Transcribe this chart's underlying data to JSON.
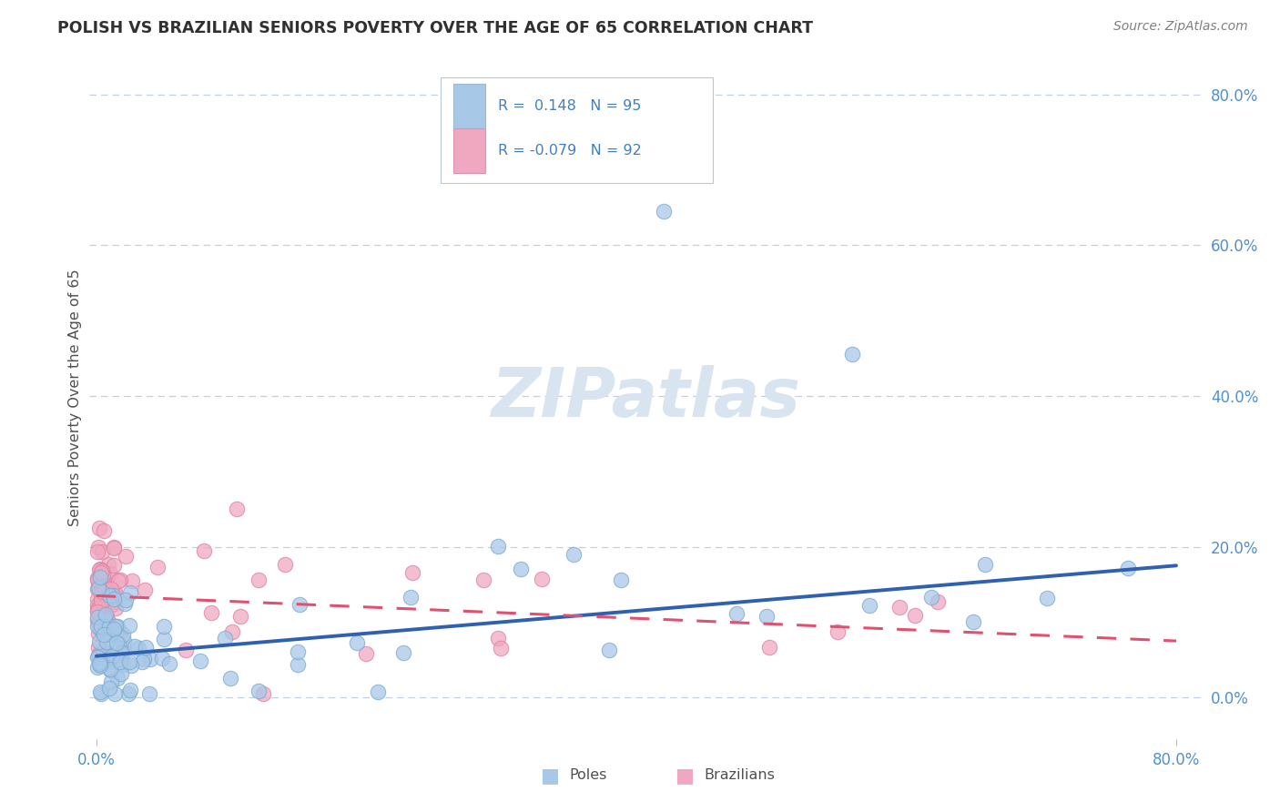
{
  "title": "POLISH VS BRAZILIAN SENIORS POVERTY OVER THE AGE OF 65 CORRELATION CHART",
  "source": "Source: ZipAtlas.com",
  "ylabel_label": "Seniors Poverty Over the Age of 65",
  "ytick_labels": [
    "0.0%",
    "20.0%",
    "40.0%",
    "60.0%",
    "80.0%"
  ],
  "ytick_values": [
    0.0,
    0.2,
    0.4,
    0.6,
    0.8
  ],
  "xlim": [
    -0.005,
    0.82
  ],
  "ylim": [
    -0.055,
    0.85
  ],
  "poles_R": 0.148,
  "poles_N": 95,
  "brazilians_R": -0.079,
  "brazilians_N": 92,
  "poles_color": "#a8c8e8",
  "poles_edge_color": "#7aaad0",
  "poles_line_color": "#3060b0",
  "brazilians_color": "#f0a8c0",
  "brazilians_edge_color": "#e080a0",
  "brazilians_line_color": "#e05070",
  "watermark_color": "#d8e4f0",
  "background_color": "#ffffff",
  "grid_color": "#c0d0e0",
  "title_color": "#303030",
  "axis_label_color": "#505050",
  "right_tick_color": "#5090d0",
  "bottom_tick_color": "#5090d0",
  "legend_text_color": "#4080c0",
  "poles_trend_start_y": 0.055,
  "poles_trend_end_y": 0.175,
  "brazilians_trend_start_y": 0.135,
  "brazilians_trend_end_y": 0.075
}
